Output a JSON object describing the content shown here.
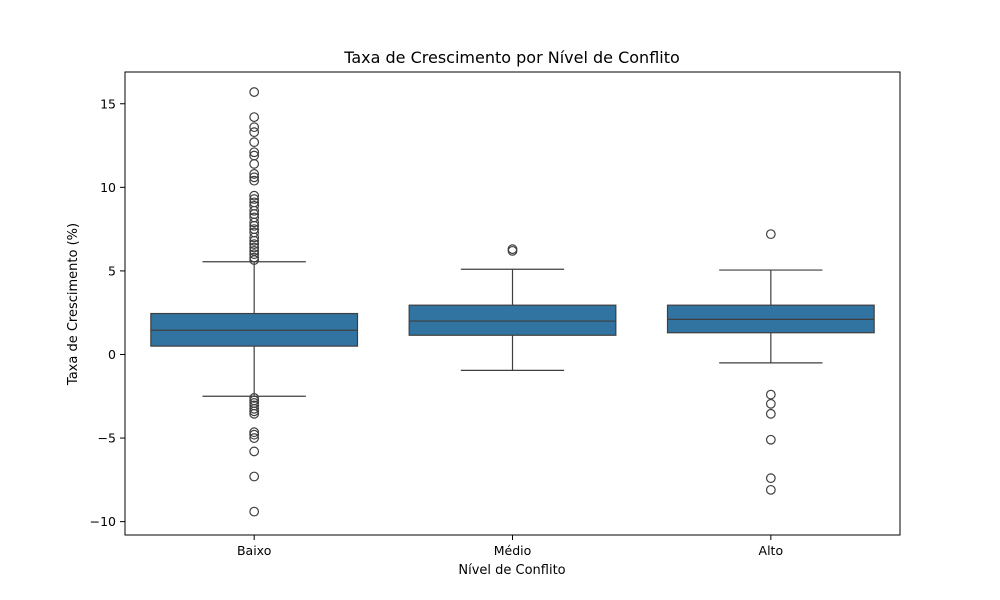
{
  "chart_data": {
    "type": "box",
    "title": "Taxa de Crescimento por Nível de Conflito",
    "xlabel": "Nível de Conflito",
    "ylabel": "Taxa de Crescimento (%)",
    "ylim": [
      -10.8,
      16.9
    ],
    "yticks": [
      {
        "value": 15,
        "label": "15"
      },
      {
        "value": 10,
        "label": "10"
      },
      {
        "value": 5,
        "label": "5"
      },
      {
        "value": 0,
        "label": "0"
      },
      {
        "value": -5,
        "label": "−5"
      },
      {
        "value": -10,
        "label": "−10"
      }
    ],
    "grid": false,
    "legend": "none",
    "box_color": "#3274a1",
    "line_color": "#3f3f3f",
    "categories": [
      "Baixo",
      "Médio",
      "Alto"
    ],
    "boxes": [
      {
        "category": "Baixo",
        "whisker_low": -2.5,
        "q1": 0.5,
        "median": 1.45,
        "q3": 2.45,
        "whisker_high": 5.55,
        "outliers": [
          15.7,
          14.2,
          13.6,
          13.3,
          12.7,
          12.1,
          11.9,
          11.4,
          10.8,
          10.6,
          10.4,
          9.5,
          9.3,
          9.1,
          8.9,
          8.6,
          8.4,
          8.2,
          7.9,
          7.7,
          7.5,
          7.3,
          7.0,
          6.8,
          6.6,
          6.4,
          6.2,
          6.0,
          5.8,
          5.65,
          -2.6,
          -2.75,
          -2.9,
          -3.05,
          -3.25,
          -3.4,
          -3.55,
          -4.65,
          -4.8,
          -5.0,
          -5.8,
          -7.3,
          -9.4
        ]
      },
      {
        "category": "Médio",
        "whisker_low": -0.95,
        "q1": 1.15,
        "median": 2.0,
        "q3": 2.95,
        "whisker_high": 5.1,
        "outliers": [
          6.3,
          6.2
        ]
      },
      {
        "category": "Alto",
        "whisker_low": -0.5,
        "q1": 1.3,
        "median": 2.1,
        "q3": 2.95,
        "whisker_high": 5.05,
        "outliers": [
          7.2,
          -2.4,
          -2.95,
          -3.55,
          -5.1,
          -7.4,
          -8.1
        ]
      }
    ]
  }
}
